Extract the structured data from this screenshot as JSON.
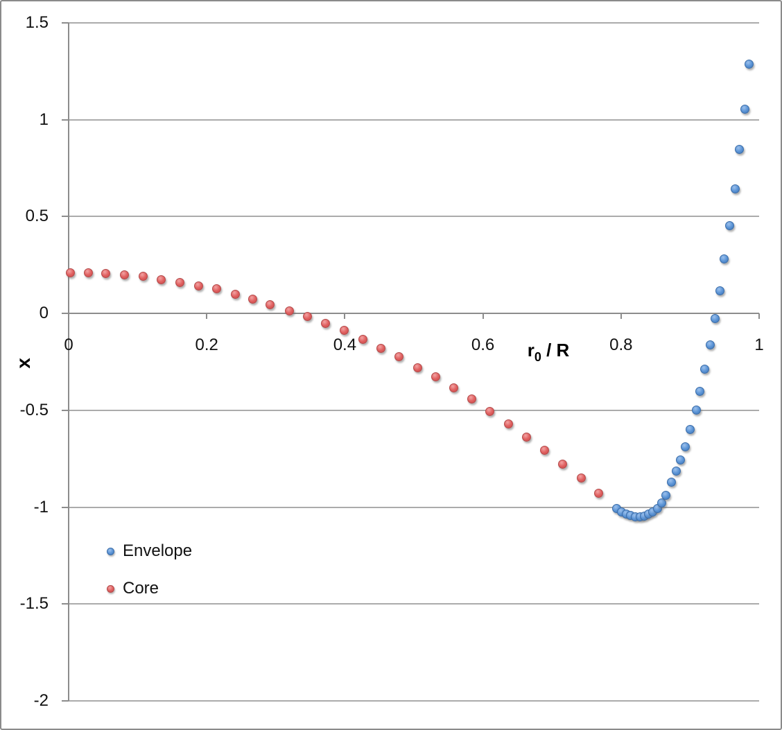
{
  "chart_data": {
    "type": "scatter",
    "title": "",
    "xlabel": "r0 / R",
    "xlabel_parts": {
      "base": "r",
      "sub": "0",
      "rest": " / R"
    },
    "ylabel": "x",
    "xlim": [
      0,
      1
    ],
    "ylim": [
      -2,
      1.5
    ],
    "grid": "horizontal",
    "legend_position": "inside-bottom-left",
    "x_ticks": [
      {
        "label": "0",
        "value": 0.0
      },
      {
        "label": "0.2",
        "value": 0.2
      },
      {
        "label": "0.4",
        "value": 0.4
      },
      {
        "label": "0.6",
        "value": 0.6
      },
      {
        "label": "0.8",
        "value": 0.8
      },
      {
        "label": "1",
        "value": 1.0
      }
    ],
    "y_ticks": [
      {
        "label": "1.5",
        "value": 1.5
      },
      {
        "label": "1",
        "value": 1.0
      },
      {
        "label": "0.5",
        "value": 0.5
      },
      {
        "label": "0",
        "value": 0.0
      },
      {
        "label": "-0.5",
        "value": -0.5
      },
      {
        "label": "-1",
        "value": -1.0
      },
      {
        "label": "-1.5",
        "value": -1.5
      },
      {
        "label": "-2",
        "value": -2.0
      }
    ],
    "series": [
      {
        "name": "Envelope",
        "color": "#5b94d6",
        "marker_colors": {
          "light": "#9cc0ec",
          "mid": "#5b94d6",
          "dark": "#3e74b4",
          "border": "#3a6ca8"
        },
        "points": [
          [
            0.794,
            -1.006
          ],
          [
            0.801,
            -1.024
          ],
          [
            0.808,
            -1.035
          ],
          [
            0.814,
            -1.042
          ],
          [
            0.821,
            -1.049
          ],
          [
            0.828,
            -1.049
          ],
          [
            0.834,
            -1.045
          ],
          [
            0.84,
            -1.035
          ],
          [
            0.846,
            -1.024
          ],
          [
            0.853,
            -1.006
          ],
          [
            0.859,
            -0.977
          ],
          [
            0.865,
            -0.938
          ],
          [
            0.873,
            -0.87
          ],
          [
            0.88,
            -0.813
          ],
          [
            0.886,
            -0.755
          ],
          [
            0.893,
            -0.687
          ],
          [
            0.9,
            -0.598
          ],
          [
            0.909,
            -0.497
          ],
          [
            0.914,
            -0.401
          ],
          [
            0.921,
            -0.286
          ],
          [
            0.929,
            -0.161
          ],
          [
            0.936,
            -0.025
          ],
          [
            0.943,
            0.118
          ],
          [
            0.949,
            0.283
          ],
          [
            0.957,
            0.455
          ],
          [
            0.965,
            0.644
          ],
          [
            0.971,
            0.848
          ],
          [
            0.979,
            1.056
          ],
          [
            0.985,
            1.288
          ]
        ]
      },
      {
        "name": "Core",
        "color": "#e06060",
        "marker_colors": {
          "light": "#f2a3a3",
          "mid": "#e06060",
          "dark": "#c64a4a",
          "border": "#b34a4a"
        },
        "points": [
          [
            0.003,
            0.211
          ],
          [
            0.029,
            0.211
          ],
          [
            0.054,
            0.208
          ],
          [
            0.081,
            0.2
          ],
          [
            0.108,
            0.193
          ],
          [
            0.134,
            0.175
          ],
          [
            0.161,
            0.161
          ],
          [
            0.188,
            0.143
          ],
          [
            0.214,
            0.129
          ],
          [
            0.241,
            0.1
          ],
          [
            0.267,
            0.075
          ],
          [
            0.292,
            0.047
          ],
          [
            0.32,
            0.014
          ],
          [
            0.346,
            -0.014
          ],
          [
            0.372,
            -0.05
          ],
          [
            0.399,
            -0.086
          ],
          [
            0.426,
            -0.132
          ],
          [
            0.452,
            -0.179
          ],
          [
            0.478,
            -0.222
          ],
          [
            0.506,
            -0.279
          ],
          [
            0.532,
            -0.326
          ],
          [
            0.558,
            -0.383
          ],
          [
            0.584,
            -0.44
          ],
          [
            0.61,
            -0.505
          ],
          [
            0.637,
            -0.569
          ],
          [
            0.663,
            -0.637
          ],
          [
            0.689,
            -0.705
          ],
          [
            0.715,
            -0.777
          ],
          [
            0.742,
            -0.848
          ],
          [
            0.768,
            -0.927
          ]
        ]
      }
    ]
  }
}
